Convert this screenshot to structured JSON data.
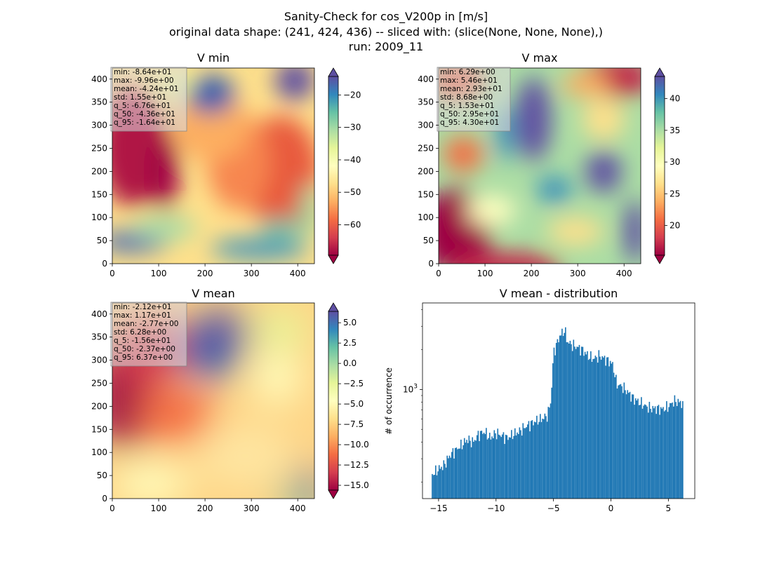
{
  "suptitle": [
    "Sanity-Check for cos_V200p in [m/s]",
    "original data shape: (241, 424, 436) -- sliced with: (slice(None, None, None),)",
    "run: 2009_11"
  ],
  "colors": {
    "hist_bar": "#1f77b4",
    "colormap": "Spectral",
    "stats_box": "#dddddd"
  },
  "chart_data": [
    {
      "type": "heatmap",
      "title": "V min",
      "xlim": [
        0,
        436
      ],
      "ylim": [
        0,
        424
      ],
      "xticks": [
        "0",
        "100",
        "200",
        "300",
        "400"
      ],
      "yticks": [
        "0",
        "50",
        "100",
        "150",
        "200",
        "250",
        "300",
        "350",
        "400"
      ],
      "colorbar": {
        "range": [
          -69.4,
          -14.3
        ],
        "ticks": [
          "-20",
          "-30",
          "-40",
          "-50",
          "-60"
        ]
      },
      "stats": [
        "min: -8.64e+01",
        "max: -9.96e+00",
        "mean: -4.24e+01",
        "std: 1.55e+01",
        "q_5: -6.76e+01",
        "q_50: -4.36e+01",
        "q_95: -1.64e+01"
      ]
    },
    {
      "type": "heatmap",
      "title": "V max",
      "xlim": [
        0,
        436
      ],
      "ylim": [
        0,
        424
      ],
      "xticks": [
        "0",
        "100",
        "200",
        "300",
        "400"
      ],
      "yticks": [
        "0",
        "50",
        "100",
        "150",
        "200",
        "250",
        "300",
        "350",
        "400"
      ],
      "colorbar": {
        "range": [
          15.3,
          43.5
        ],
        "ticks": [
          "40",
          "35",
          "30",
          "25",
          "20"
        ]
      },
      "stats": [
        "min: 6.29e+00",
        "max: 5.46e+01",
        "mean: 2.93e+01",
        "std: 8.68e+00",
        "q_5: 1.53e+01",
        "q_50: 2.95e+01",
        "q_95: 4.30e+01"
      ]
    },
    {
      "type": "heatmap",
      "title": "V mean",
      "xlim": [
        0,
        436
      ],
      "ylim": [
        0,
        424
      ],
      "xticks": [
        "0",
        "100",
        "200",
        "300",
        "400"
      ],
      "yticks": [
        "0",
        "50",
        "100",
        "150",
        "200",
        "250",
        "300",
        "350",
        "400"
      ],
      "colorbar": {
        "range": [
          -15.6,
          6.4
        ],
        "ticks": [
          "5.0",
          "2.5",
          "0.0",
          "-2.5",
          "-5.0",
          "-7.5",
          "-10.0",
          "-12.5",
          "-15.0"
        ]
      },
      "stats": [
        "min: -2.12e+01",
        "max: 1.17e+01",
        "mean: -2.77e+00",
        "std: 6.28e+00",
        "q_5: -1.56e+01",
        "q_50: -2.37e+00",
        "q_95: 6.37e+00"
      ]
    },
    {
      "type": "bar",
      "title": "V mean - distribution",
      "ylabel": "# of occurrence",
      "yscale": "log",
      "xlim": [
        -16.4,
        7.3
      ],
      "ylim": [
        150,
        4500
      ],
      "xticks": [
        "-15",
        "-10",
        "-5",
        "0",
        "5"
      ],
      "yticks": [
        "10^3"
      ],
      "bin_start": -15.6,
      "bin_width": 0.1,
      "x": [
        -15.5,
        -15.0,
        -14.5,
        -14.0,
        -13.5,
        -13.0,
        -12.5,
        -12.0,
        -11.5,
        -11.0,
        -10.5,
        -10.0,
        -9.5,
        -9.0,
        -8.5,
        -8.0,
        -7.5,
        -7.0,
        -6.5,
        -6.0,
        -5.5,
        -5.2,
        -5.0,
        -4.7,
        -4.5,
        -4.2,
        -4.0,
        -3.8,
        -3.5,
        -3.0,
        -2.5,
        -2.0,
        -1.5,
        -1.0,
        -0.5,
        0.0,
        0.2,
        0.5,
        1.0,
        1.5,
        2.0,
        2.5,
        3.0,
        3.5,
        4.0,
        4.5,
        5.0,
        5.5,
        6.0,
        6.3
      ],
      "values": [
        230,
        250,
        270,
        320,
        350,
        380,
        420,
        400,
        460,
        480,
        430,
        470,
        450,
        430,
        460,
        480,
        520,
        550,
        580,
        600,
        640,
        850,
        1900,
        2200,
        2500,
        2700,
        2800,
        2300,
        2200,
        2100,
        2000,
        1800,
        1700,
        1800,
        1700,
        1600,
        1500,
        1100,
        1050,
        950,
        850,
        800,
        750,
        720,
        720,
        710,
        740,
        820,
        800,
        780
      ]
    }
  ]
}
